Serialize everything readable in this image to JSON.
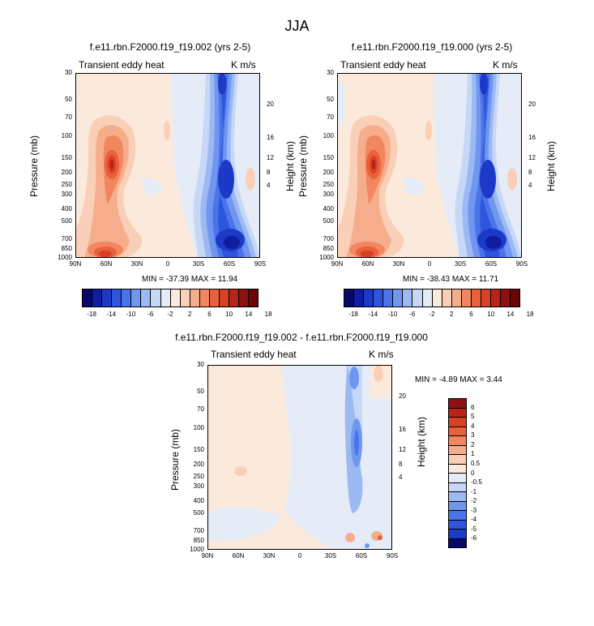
{
  "title": "JJA",
  "panels": [
    {
      "title": "f.e11.rbn.F2000.f19_f19.002 (yrs 2-5)",
      "left_label": "Transient eddy heat",
      "right_label": "K m/s",
      "min_max": "MIN = -37.39  MAX = 11.94"
    },
    {
      "title": "f.e11.rbn.F2000.f19_f19.000 (yrs 2-5)",
      "left_label": "Transient eddy heat",
      "right_label": "K m/s",
      "min_max": "MIN = -38.43  MAX = 11.71"
    },
    {
      "title": "f.e11.rbn.F2000.f19_f19.002 - f.e11.rbn.F2000.f19_f19.000",
      "left_label": "Transient eddy heat",
      "right_label": "K m/s",
      "min_max": "MIN = -4.89  MAX = 3.44"
    }
  ],
  "axes": {
    "ylabel_left": "Pressure (mb)",
    "ylabel_right": "Height (km)",
    "x_ticks": [
      "90N",
      "60N",
      "30N",
      "0",
      "30S",
      "60S",
      "90S"
    ],
    "pressure_ticks": [
      "30",
      "50",
      "70",
      "100",
      "150",
      "200",
      "250",
      "300",
      "400",
      "500",
      "700",
      "850",
      "1000"
    ],
    "height_ticks": [
      "20",
      "16",
      "12",
      "8",
      "4"
    ]
  },
  "colorbars": {
    "main_labels": [
      "-18",
      "-14",
      "-10",
      "-6",
      "-2",
      "2",
      "6",
      "10",
      "14",
      "18"
    ],
    "diff_labels": [
      "6",
      "5",
      "4",
      "3",
      "2",
      "1",
      "0.5",
      "0",
      "-0.5",
      "-1",
      "-2",
      "-3",
      "-4",
      "-5",
      "-6"
    ]
  },
  "chart_data": [
    {
      "type": "heatmap",
      "title": "f.e11.rbn.F2000.f19_f19.002 (yrs 2-5)",
      "xlabel": "",
      "ylabel": "Pressure (mb)",
      "ylabel_right": "Height (km)",
      "x_range": [
        "90N",
        "90S"
      ],
      "y_range_mb": [
        1000,
        30
      ],
      "y_scale": "log",
      "min": -37.39,
      "max": 11.94,
      "contour_levels": [
        -20,
        -18,
        -16,
        -14,
        -12,
        -10,
        -8,
        -6,
        -4,
        -2,
        0,
        2,
        4,
        6,
        8,
        10,
        12,
        14,
        16,
        18,
        20
      ]
    },
    {
      "type": "heatmap",
      "title": "f.e11.rbn.F2000.f19_f19.000 (yrs 2-5)",
      "xlabel": "",
      "ylabel": "Pressure (mb)",
      "ylabel_right": "Height (km)",
      "x_range": [
        "90N",
        "90S"
      ],
      "y_range_mb": [
        1000,
        30
      ],
      "y_scale": "log",
      "min": -38.43,
      "max": 11.71,
      "contour_levels": [
        -20,
        -18,
        -16,
        -14,
        -12,
        -10,
        -8,
        -6,
        -4,
        -2,
        0,
        2,
        4,
        6,
        8,
        10,
        12,
        14,
        16,
        18,
        20
      ]
    },
    {
      "type": "heatmap",
      "title": "f.e11.rbn.F2000.f19_f19.002 - f.e11.rbn.F2000.f19_f19.000",
      "xlabel": "",
      "ylabel": "Pressure (mb)",
      "ylabel_right": "Height (km)",
      "x_range": [
        "90N",
        "90S"
      ],
      "y_range_mb": [
        1000,
        30
      ],
      "y_scale": "log",
      "min": -4.89,
      "max": 3.44,
      "contour_levels": [
        -6,
        -5,
        -4,
        -3,
        -2,
        -1,
        -0.5,
        0,
        0.5,
        1,
        2,
        3,
        4,
        5,
        6
      ]
    }
  ],
  "colors": {
    "main_scale": [
      "#08086b",
      "#0f1da0",
      "#1c39c7",
      "#2f55dd",
      "#4a74ea",
      "#7097f0",
      "#9db9f3",
      "#c6d8f5",
      "#e5ecf7",
      "#fbe9dc",
      "#f9d0b7",
      "#f6ad8c",
      "#f1865f",
      "#e8603c",
      "#d84125",
      "#b92418",
      "#8e1010",
      "#6a0505"
    ],
    "diff_scale": [
      "#8e1010",
      "#b92418",
      "#d84125",
      "#e8603c",
      "#f1865f",
      "#f6ad8c",
      "#f9d0b7",
      "#fbe9dc",
      "#e5ecf7",
      "#c6d8f5",
      "#9db9f3",
      "#7097f0",
      "#4a74ea",
      "#2f55dd",
      "#1c39c7",
      "#08086b"
    ]
  }
}
